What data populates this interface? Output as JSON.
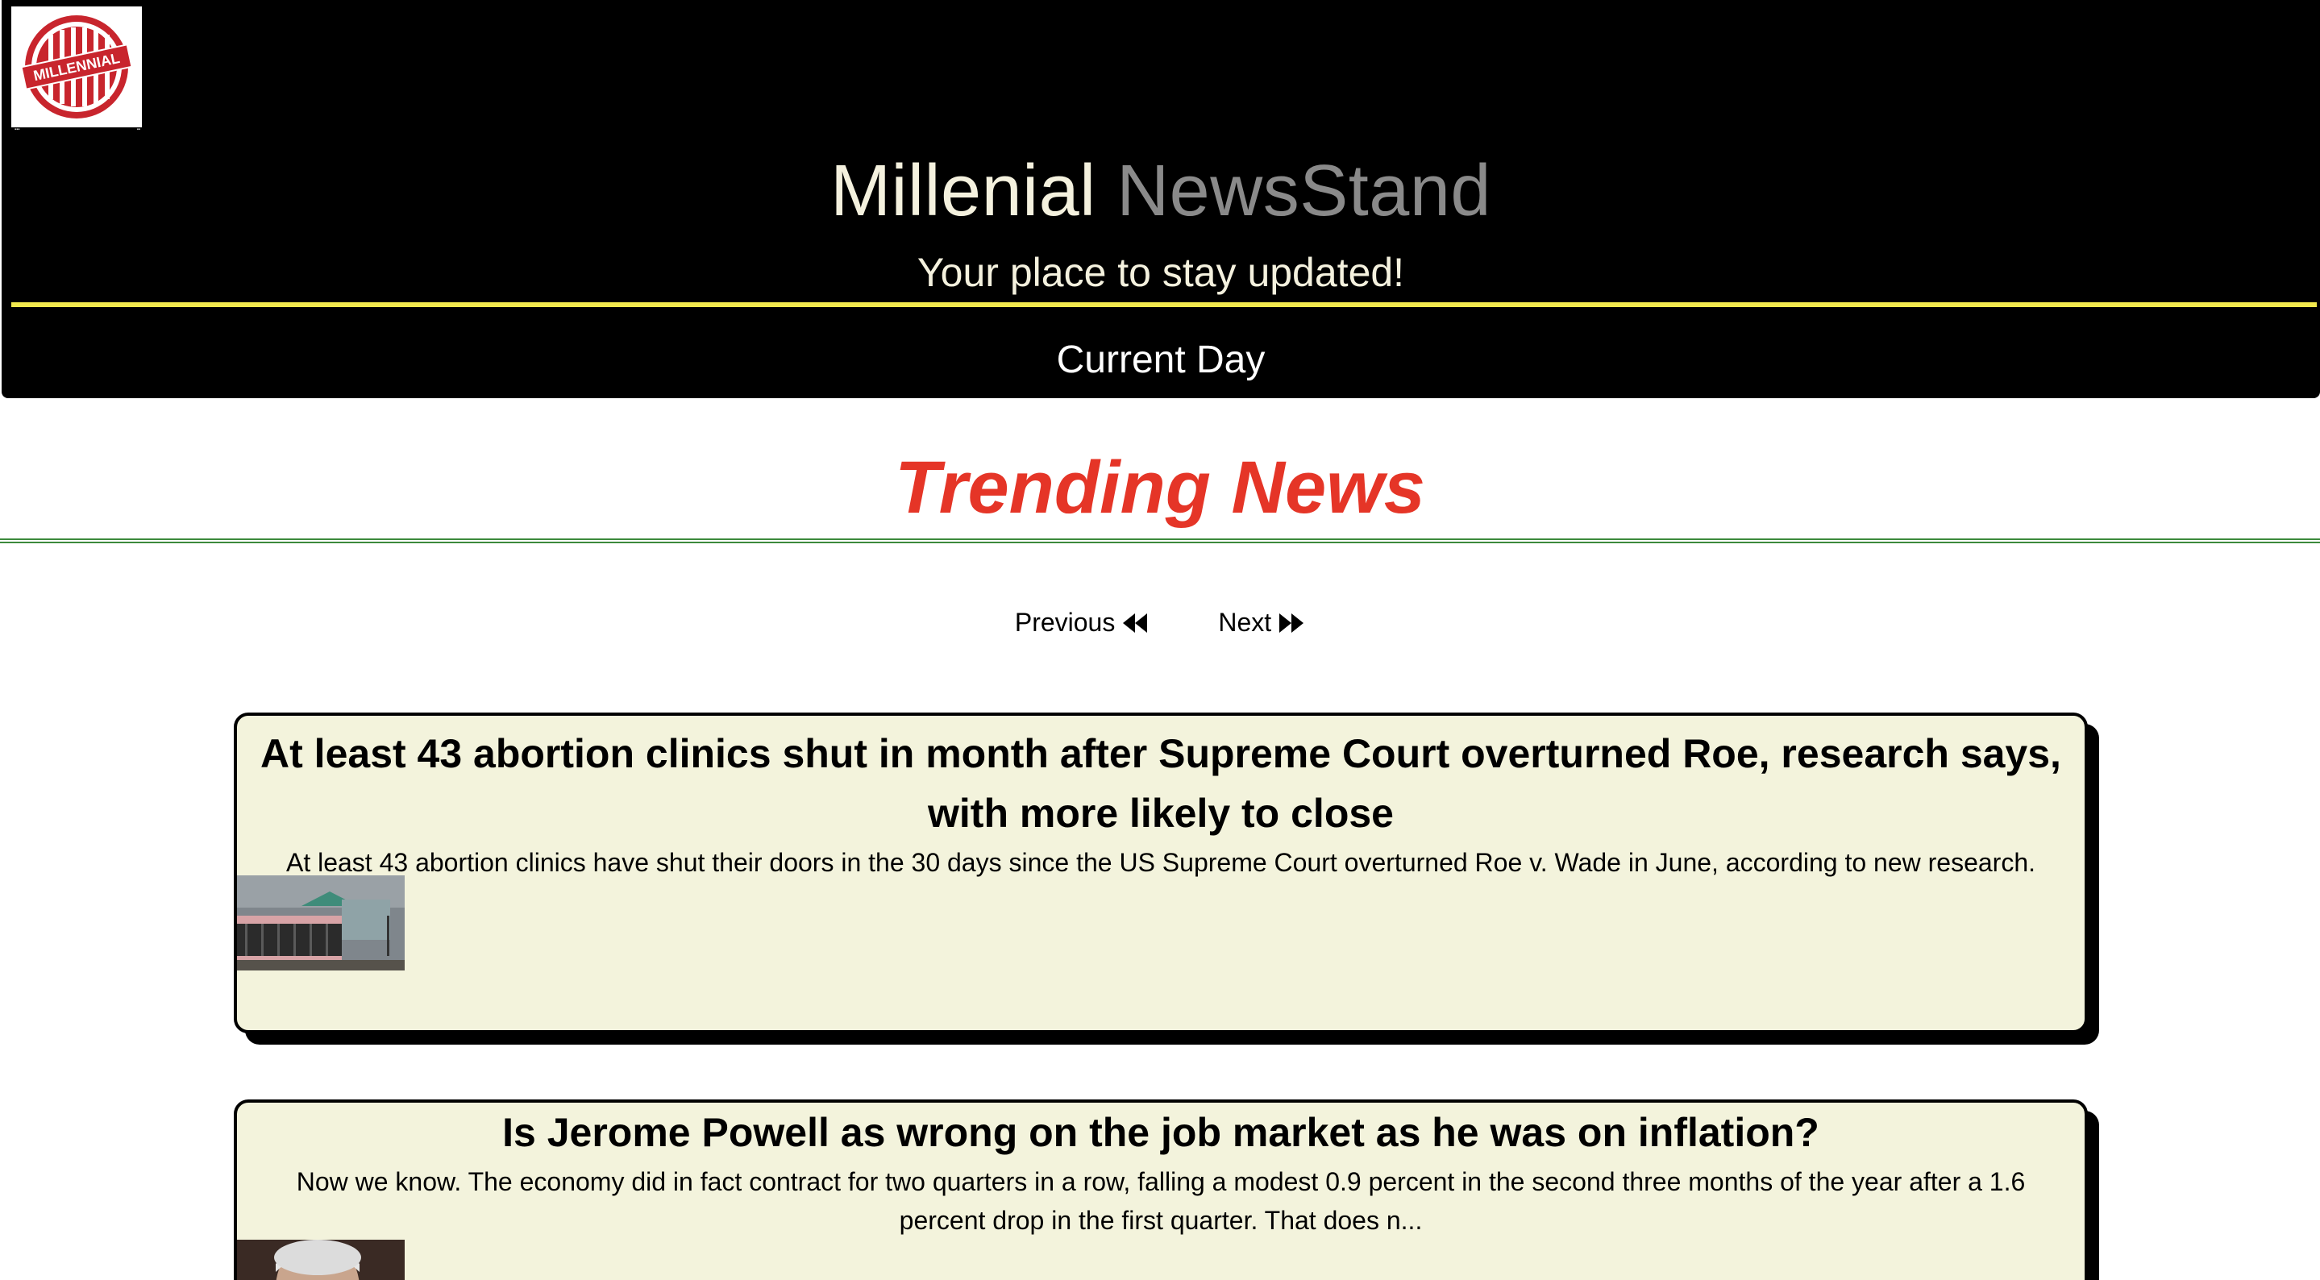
{
  "header": {
    "title_part1": "Millenial",
    "title_part2": "NewsStand",
    "tagline": "Your place to stay updated!",
    "current_day": "Current Day",
    "logo_text": "MILLENNIAL"
  },
  "trending": {
    "title": "Trending News"
  },
  "pager": {
    "previous_label": "Previous",
    "next_label": "Next"
  },
  "articles": [
    {
      "title": "At least 43 abortion clinics shut in month after Supreme Court overturned Roe, research says, with more likely to close",
      "summary": "At least 43 abortion clinics have shut their doors in the 30 days since the US Supreme Court overturned Roe v. Wade in June, according to new research."
    },
    {
      "title": "Is Jerome Powell as wrong on the job market as he was on inflation?",
      "summary": "Now we know. The economy did in fact contract for two quarters in a row, falling a modest 0.9 percent in the second three months of the year after a 1.6 percent drop in the first quarter. That does n..."
    }
  ],
  "colors": {
    "header_bg": "#000000",
    "accent_yellow": "#f2e94e",
    "trending_red": "#e53527",
    "card_bg": "#f3f3dc",
    "divider_green": "#3c8a3c"
  }
}
